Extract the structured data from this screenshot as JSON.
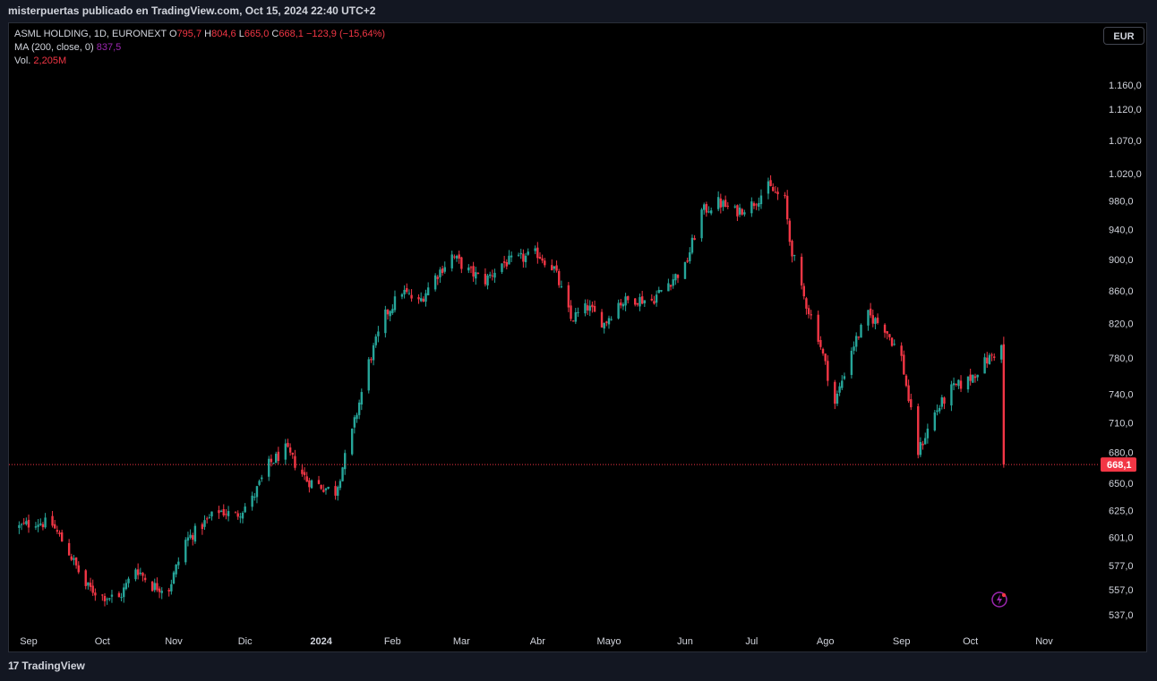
{
  "header": {
    "published": "misterpuertas publicado en TradingView.com, Oct 15, 2024 22:40 UTC+2"
  },
  "legend": {
    "symbol": "ASML HOLDING, 1D, EURONEXT",
    "o_label": "O",
    "o_value": "795,7",
    "h_label": "H",
    "h_value": "804,6",
    "l_label": "L",
    "l_value": "665,0",
    "c_label": "C",
    "c_value": "668,1",
    "change": "−123,9 (−15,64%)",
    "ma_label": "MA (200, close, 0)",
    "ma_value": "837,5",
    "vol_label": "Vol.",
    "vol_value": "2,205M"
  },
  "currency_button": "EUR",
  "footer": {
    "brand": "TradingView",
    "logo": "17"
  },
  "colors": {
    "up": "#26a69a",
    "down": "#f23645",
    "bg": "#000000",
    "grid": "none",
    "last_price": "#f23645"
  },
  "chart_data": {
    "type": "candlestick",
    "title": "ASML HOLDING, 1D, EURONEXT",
    "y_scale": "log",
    "ylim": [
      525,
      1190
    ],
    "y_ticks": [
      {
        "value": 1160,
        "label": "1.160,0"
      },
      {
        "value": 1120,
        "label": "1.120,0"
      },
      {
        "value": 1070,
        "label": "1.070,0"
      },
      {
        "value": 1020,
        "label": "1.020,0"
      },
      {
        "value": 980,
        "label": "980,0"
      },
      {
        "value": 940,
        "label": "940,0"
      },
      {
        "value": 900,
        "label": "900,0"
      },
      {
        "value": 860,
        "label": "860,0"
      },
      {
        "value": 820,
        "label": "820,0"
      },
      {
        "value": 780,
        "label": "780,0"
      },
      {
        "value": 740,
        "label": "740,0"
      },
      {
        "value": 710,
        "label": "710,0"
      },
      {
        "value": 680,
        "label": "680,0"
      },
      {
        "value": 650,
        "label": "650,0"
      },
      {
        "value": 625,
        "label": "625,0"
      },
      {
        "value": 601,
        "label": "601,0"
      },
      {
        "value": 577,
        "label": "577,0"
      },
      {
        "value": 557,
        "label": "557,0"
      },
      {
        "value": 537,
        "label": "537,0"
      }
    ],
    "x_ticks": [
      {
        "date": "2023-09-01",
        "label": "Sep"
      },
      {
        "date": "2023-10-02",
        "label": "Oct"
      },
      {
        "date": "2023-11-01",
        "label": "Nov"
      },
      {
        "date": "2023-12-01",
        "label": "Dic"
      },
      {
        "date": "2024-01-02",
        "label": "2024"
      },
      {
        "date": "2024-02-01",
        "label": "Feb"
      },
      {
        "date": "2024-03-01",
        "label": "Mar"
      },
      {
        "date": "2024-04-02",
        "label": "Abr"
      },
      {
        "date": "2024-05-02",
        "label": "Mayo"
      },
      {
        "date": "2024-06-03",
        "label": "Jun"
      },
      {
        "date": "2024-07-01",
        "label": "Jul"
      },
      {
        "date": "2024-08-01",
        "label": "Ago"
      },
      {
        "date": "2024-09-02",
        "label": "Sep"
      },
      {
        "date": "2024-10-01",
        "label": "Oct"
      },
      {
        "date": "2024-11-01",
        "label": "Nov"
      }
    ],
    "last_price": {
      "value": 668.1,
      "label": "668,1"
    },
    "close_path": [
      [
        "2023-08-28",
        610
      ],
      [
        "2023-09-04",
        615
      ],
      [
        "2023-09-11",
        612
      ],
      [
        "2023-09-18",
        588
      ],
      [
        "2023-09-25",
        560
      ],
      [
        "2023-10-02",
        552
      ],
      [
        "2023-10-09",
        550
      ],
      [
        "2023-10-16",
        575
      ],
      [
        "2023-10-23",
        560
      ],
      [
        "2023-10-30",
        558
      ],
      [
        "2023-11-06",
        598
      ],
      [
        "2023-11-13",
        612
      ],
      [
        "2023-11-20",
        625
      ],
      [
        "2023-11-27",
        620
      ],
      [
        "2023-12-04",
        635
      ],
      [
        "2023-12-11",
        668
      ],
      [
        "2023-12-18",
        683
      ],
      [
        "2023-12-27",
        653
      ],
      [
        "2024-01-08",
        642
      ],
      [
        "2024-01-15",
        700
      ],
      [
        "2024-01-22",
        775
      ],
      [
        "2024-01-29",
        830
      ],
      [
        "2024-02-05",
        860
      ],
      [
        "2024-02-12",
        845
      ],
      [
        "2024-02-19",
        878
      ],
      [
        "2024-02-26",
        905
      ],
      [
        "2024-03-04",
        885
      ],
      [
        "2024-03-11",
        873
      ],
      [
        "2024-03-18",
        895
      ],
      [
        "2024-03-25",
        900
      ],
      [
        "2024-04-02",
        908
      ],
      [
        "2024-04-09",
        888
      ],
      [
        "2024-04-16",
        825
      ],
      [
        "2024-04-23",
        840
      ],
      [
        "2024-04-30",
        820
      ],
      [
        "2024-05-06",
        845
      ],
      [
        "2024-05-13",
        850
      ],
      [
        "2024-05-20",
        848
      ],
      [
        "2024-05-27",
        870
      ],
      [
        "2024-06-03",
        890
      ],
      [
        "2024-06-10",
        965
      ],
      [
        "2024-06-17",
        978
      ],
      [
        "2024-06-24",
        965
      ],
      [
        "2024-07-01",
        975
      ],
      [
        "2024-07-08",
        1000
      ],
      [
        "2024-07-15",
        980
      ],
      [
        "2024-07-17",
        925
      ],
      [
        "2024-07-22",
        860
      ],
      [
        "2024-07-29",
        805
      ],
      [
        "2024-08-05",
        730
      ],
      [
        "2024-08-12",
        790
      ],
      [
        "2024-08-19",
        830
      ],
      [
        "2024-08-26",
        815
      ],
      [
        "2024-09-02",
        780
      ],
      [
        "2024-09-06",
        720
      ],
      [
        "2024-09-09",
        680
      ],
      [
        "2024-09-16",
        720
      ],
      [
        "2024-09-23",
        745
      ],
      [
        "2024-09-30",
        755
      ],
      [
        "2024-10-07",
        775
      ],
      [
        "2024-10-14",
        792
      ],
      [
        "2024-10-15",
        668.1
      ]
    ]
  }
}
